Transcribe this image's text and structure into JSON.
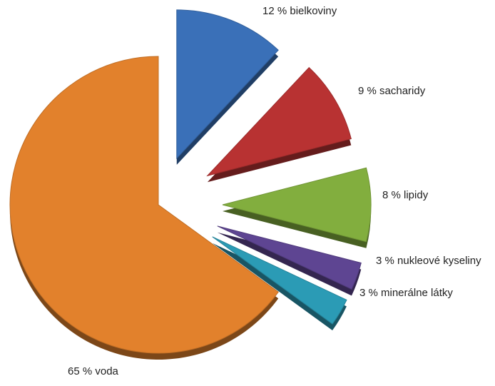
{
  "chart_data": {
    "type": "pie",
    "title": "",
    "slices": [
      {
        "label": "12 % bielkoviny",
        "value": 12,
        "color": "#3a70b8"
      },
      {
        "label": "9 %  sacharidy",
        "value": 9,
        "color": "#b83232"
      },
      {
        "label": "8 % lipidy",
        "value": 8,
        "color": "#82ae3e"
      },
      {
        "label": "3 % nukleové kyseliny",
        "value": 3,
        "color": "#5e4592"
      },
      {
        "label": "3 % minerálne látky",
        "value": 3,
        "color": "#2b9bb5"
      },
      {
        "label": "65 % voda",
        "value": 65,
        "color": "#e2812c"
      }
    ],
    "exploded": true,
    "style": "3d"
  }
}
